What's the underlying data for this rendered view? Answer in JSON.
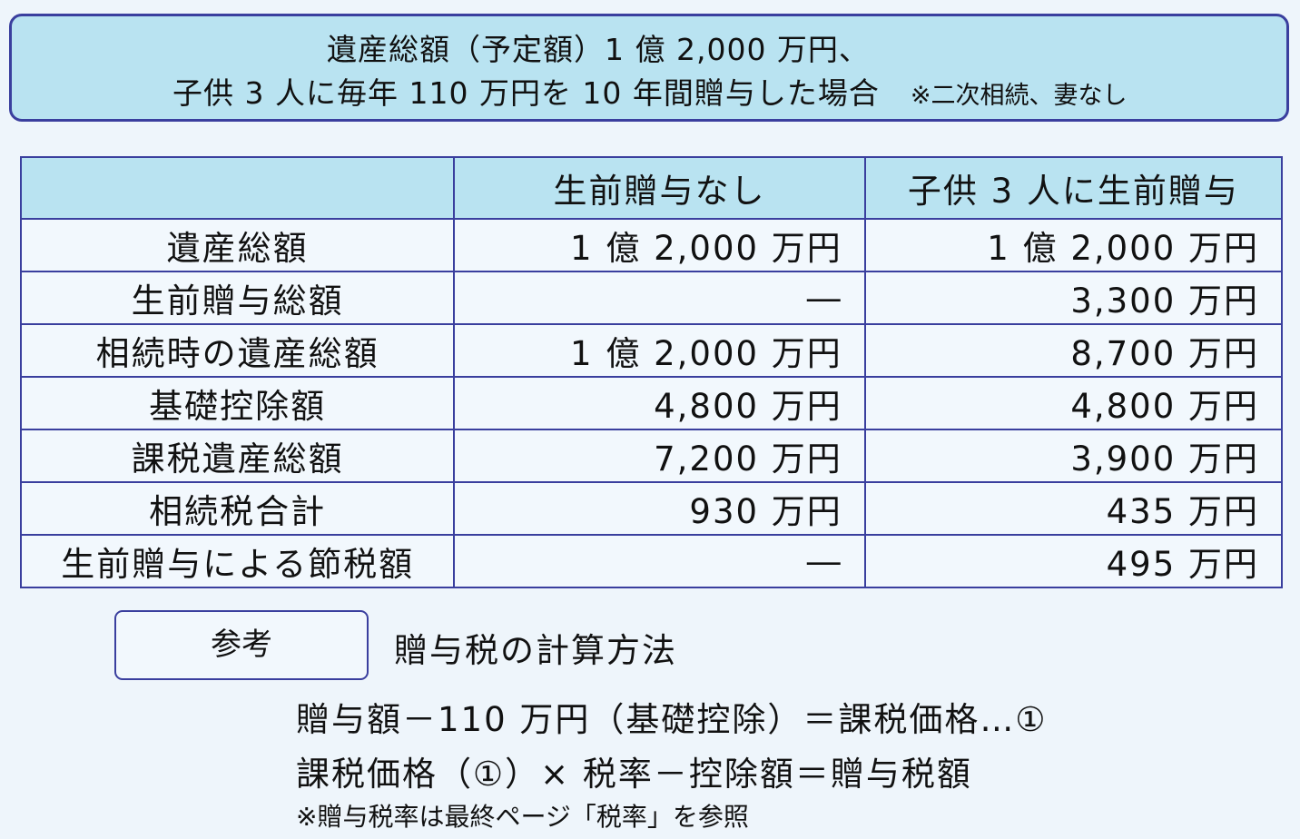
{
  "title": {
    "line1": "遺産総額（予定額）1 億 2,000 万円、",
    "line2": "子供 3 人に毎年 110 万円を 10 年間贈与した場合",
    "note": "※二次相続、妻なし"
  },
  "table": {
    "headers": [
      "",
      "生前贈与なし",
      "子供 3 人に生前贈与"
    ],
    "rows": [
      {
        "label": "遺産総額",
        "a": "1 億 2,000 万円",
        "b": "1 億 2,000 万円"
      },
      {
        "label": "生前贈与総額",
        "a": "―",
        "b": "3,300 万円"
      },
      {
        "label": "相続時の遺産総額",
        "a": "1 億 2,000 万円",
        "b": "8,700 万円"
      },
      {
        "label": "基礎控除額",
        "a": "4,800 万円",
        "b": "4,800 万円"
      },
      {
        "label": "課税遺産総額",
        "a": "7,200 万円",
        "b": "3,900 万円"
      },
      {
        "label": "相続税合計",
        "a": "930 万円",
        "b": "435 万円"
      },
      {
        "label": "生前贈与による節税額",
        "a": "―",
        "b": "495 万円"
      }
    ]
  },
  "reference": {
    "badge": "参考",
    "title": "贈与税の計算方法",
    "formula1": "贈与額－110 万円（基礎控除）＝課税価格…①",
    "formula2": "課税価格（①）× 税率－控除額＝贈与税額",
    "note": "※贈与税率は最終ページ「税率」を参照"
  },
  "colors": {
    "border": "#3a3f9e",
    "header_fill": "#b9e3f1",
    "background": "#eef5fb"
  }
}
